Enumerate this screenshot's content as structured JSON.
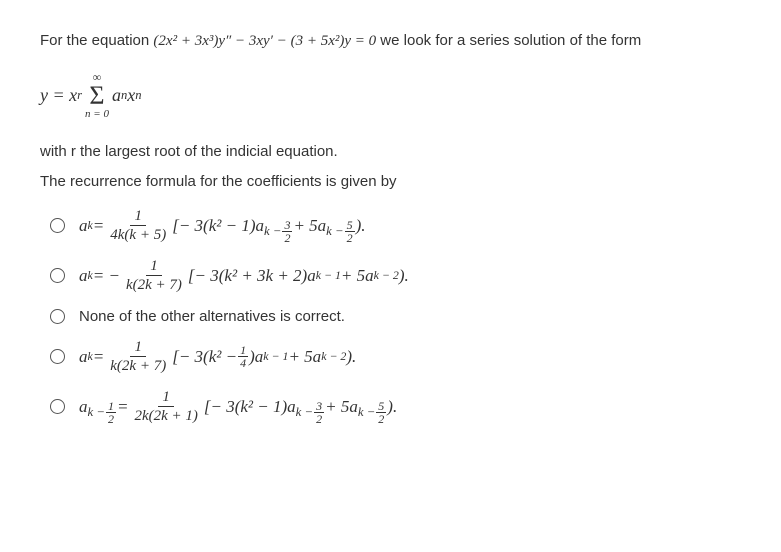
{
  "intro_pre": "For the equation ",
  "intro_eq": "(2x² + 3x³)y″ − 3xy′ − (3 + 5x²)y = 0",
  "intro_post": " we look for a series solution of the form",
  "series_lhs": "y = x",
  "series_exp": "r",
  "sigma_top": "∞",
  "sigma_bot": "n = 0",
  "series_term1": "a",
  "series_term1_sub": "n",
  "series_term2": "x",
  "series_term2_sup": "n",
  "desc1": "with r the largest root of the indicial equation.",
  "desc2": "The recurrence formula for the coefficients is given by",
  "opt1": {
    "lhs": "a",
    "lhs_sub": "k",
    "eq": " = ",
    "frac_num": "1",
    "frac_den": "4k(k + 5)",
    "mid": "[− 3(k² − 1)a",
    "sub1_pre": "k − ",
    "sub1_n": "3",
    "sub1_d": "2",
    "plus": " + 5a",
    "sub2_pre": "k − ",
    "sub2_n": "5",
    "sub2_d": "2",
    "end": ")."
  },
  "opt2": {
    "lhs": "a",
    "lhs_sub": "k",
    "eq": " = − ",
    "frac_num": "1",
    "frac_den": "k(2k + 7)",
    "mid": "[− 3(k² + 3k + 2)a",
    "sub1": "k − 1",
    "plus": " + 5a",
    "sub2": "k − 2",
    "end": ")."
  },
  "opt3_text": "None of the other alternatives is correct.",
  "opt4": {
    "lhs": "a",
    "lhs_sub": "k",
    "eq": " = ",
    "frac_num": "1",
    "frac_den": "k(2k + 7)",
    "mid_pre": "[− 3(k² − ",
    "mid_n": "1",
    "mid_d": "4",
    "mid_post": ")a",
    "sub1": "k − 1",
    "plus": " + 5a",
    "sub2": "k − 2",
    "end": ")."
  },
  "opt5": {
    "lhs": "a",
    "lhs_sub_pre": "k − ",
    "lhs_sub_n": "1",
    "lhs_sub_d": "2",
    "eq": " = ",
    "frac_num": "1",
    "frac_den": "2k(2k + 1)",
    "mid": "[− 3(k² − 1)a",
    "sub1_pre": "k − ",
    "sub1_n": "3",
    "sub1_d": "2",
    "plus": " + 5a",
    "sub2_pre": "k − ",
    "sub2_n": "5",
    "sub2_d": "2",
    "end": ")."
  }
}
